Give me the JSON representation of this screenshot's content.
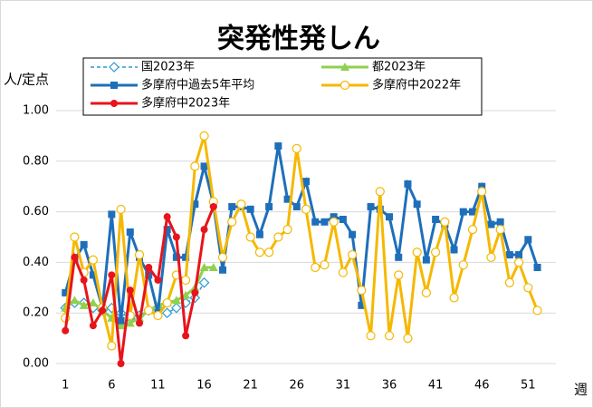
{
  "chart_data": {
    "type": "line",
    "title": "突発性発しん",
    "ylabel": "人/定点",
    "xlabel": "週",
    "x": [
      1,
      2,
      3,
      4,
      5,
      6,
      7,
      8,
      9,
      10,
      11,
      12,
      13,
      14,
      15,
      16,
      17,
      18,
      19,
      20,
      21,
      22,
      23,
      24,
      25,
      26,
      27,
      28,
      29,
      30,
      31,
      32,
      33,
      34,
      35,
      36,
      37,
      38,
      39,
      40,
      41,
      42,
      43,
      44,
      45,
      46,
      47,
      48,
      49,
      50,
      51,
      52
    ],
    "xlim": [
      0,
      54
    ],
    "xticks": [
      1,
      6,
      11,
      16,
      21,
      26,
      31,
      36,
      41,
      46,
      51
    ],
    "ylim": [
      0,
      1
    ],
    "yticks": [
      {
        "value": 0,
        "label": "0.00"
      },
      {
        "value": 0.2,
        "label": "0.20"
      },
      {
        "value": 0.4,
        "label": "0.40"
      },
      {
        "value": 0.6,
        "label": "0.60"
      },
      {
        "value": 0.8,
        "label": "0.80"
      },
      {
        "value": 1,
        "label": "1.00"
      }
    ],
    "grid": true,
    "series": [
      {
        "name": "国2023年",
        "color": "#2e9ad6",
        "marker": "diamond",
        "dashed": true,
        "values": [
          0.22,
          0.24,
          0.24,
          0.22,
          0.21,
          0.22,
          0.2,
          0.18,
          0.19,
          0.21,
          0.22,
          0.2,
          0.22,
          0.24,
          0.26,
          0.32,
          null,
          null,
          null,
          null,
          null,
          null,
          null,
          null,
          null,
          null,
          null,
          null,
          null,
          null,
          null,
          null,
          null,
          null,
          null,
          null,
          null,
          null,
          null,
          null,
          null,
          null,
          null,
          null,
          null,
          null,
          null,
          null,
          null,
          null,
          null,
          null
        ]
      },
      {
        "name": "都2023年",
        "color": "#8fd14f",
        "marker": "triangle",
        "dashed": false,
        "values": [
          0.22,
          0.25,
          0.23,
          0.24,
          0.21,
          0.18,
          0.15,
          0.16,
          0.18,
          0.21,
          0.23,
          0.24,
          0.25,
          0.27,
          0.3,
          0.38,
          0.38,
          null,
          null,
          null,
          null,
          null,
          null,
          null,
          null,
          null,
          null,
          null,
          null,
          null,
          null,
          null,
          null,
          null,
          null,
          null,
          null,
          null,
          null,
          null,
          null,
          null,
          null,
          null,
          null,
          null,
          null,
          null,
          null,
          null,
          null,
          null
        ]
      },
      {
        "name": "多摩府中過去5年平均",
        "color": "#1e6fba",
        "marker": "square",
        "dashed": false,
        "values": [
          0.28,
          0.41,
          0.47,
          0.35,
          0.22,
          0.59,
          0.17,
          0.52,
          0.42,
          0.35,
          0.2,
          0.53,
          0.42,
          0.42,
          0.63,
          0.78,
          0.63,
          0.37,
          0.62,
          0.62,
          0.61,
          0.51,
          0.62,
          0.86,
          0.65,
          0.62,
          0.72,
          0.56,
          0.56,
          0.58,
          0.57,
          0.51,
          0.23,
          0.62,
          0.61,
          0.58,
          0.42,
          0.71,
          0.63,
          0.41,
          0.57,
          0.55,
          0.45,
          0.6,
          0.6,
          0.7,
          0.55,
          0.56,
          0.43,
          0.43,
          0.49,
          0.38
        ]
      },
      {
        "name": "多摩府中2022年",
        "color": "#f5b800",
        "marker": "circle-open",
        "dashed": false,
        "values": [
          0.18,
          0.5,
          0.36,
          0.41,
          0.22,
          0.07,
          0.61,
          0.19,
          0.43,
          0.21,
          0.19,
          0.24,
          0.35,
          0.33,
          0.78,
          0.9,
          0.64,
          0.42,
          0.56,
          0.63,
          0.5,
          0.44,
          0.44,
          0.5,
          0.53,
          0.85,
          0.61,
          0.38,
          0.39,
          0.56,
          0.36,
          0.43,
          0.29,
          0.11,
          0.68,
          0.11,
          0.35,
          0.1,
          0.44,
          0.28,
          0.44,
          0.56,
          0.26,
          0.39,
          0.53,
          0.68,
          0.42,
          0.53,
          0.32,
          0.4,
          0.3,
          0.21
        ]
      },
      {
        "name": "多摩府中2023年",
        "color": "#e8141b",
        "marker": "circle",
        "dashed": false,
        "values": [
          0.13,
          0.42,
          0.33,
          0.15,
          0.21,
          0.35,
          0.0,
          0.29,
          0.16,
          0.38,
          0.33,
          0.58,
          0.5,
          0.11,
          0.28,
          0.53,
          0.62,
          null,
          null,
          null,
          null,
          null,
          null,
          null,
          null,
          null,
          null,
          null,
          null,
          null,
          null,
          null,
          null,
          null,
          null,
          null,
          null,
          null,
          null,
          null,
          null,
          null,
          null,
          null,
          null,
          null,
          null,
          null,
          null,
          null,
          null,
          null
        ]
      }
    ]
  }
}
